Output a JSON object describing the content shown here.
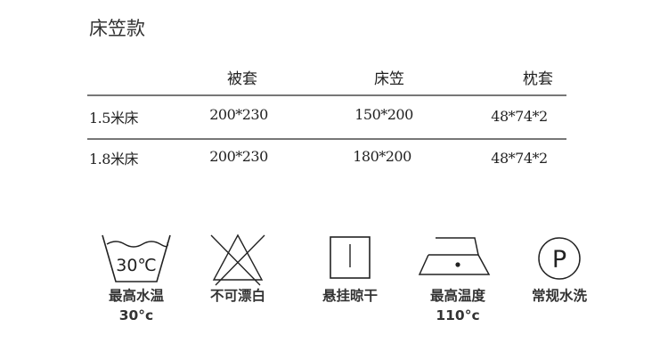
{
  "title": "床笠款",
  "table": {
    "headers": [
      "被套",
      "床笠",
      "枕套"
    ],
    "rows": [
      {
        "label": "1.5米床",
        "values": [
          "200*230",
          "150*200",
          "48*74*2"
        ]
      },
      {
        "label": "1.8米床",
        "values": [
          "200*230",
          "180*200",
          "48*74*2"
        ]
      }
    ]
  },
  "care": [
    {
      "icon": "wash-tub-icon",
      "icon_text": "30℃",
      "label": "最高水温",
      "sub": "30°c"
    },
    {
      "icon": "no-bleach-icon",
      "label": "不可漂白"
    },
    {
      "icon": "line-dry-icon",
      "label": "悬挂晾干"
    },
    {
      "icon": "iron-icon",
      "label": "最高温度",
      "sub": "110°c"
    },
    {
      "icon": "dry-clean-p-icon",
      "icon_text": "P",
      "label": "常规水洗"
    }
  ]
}
